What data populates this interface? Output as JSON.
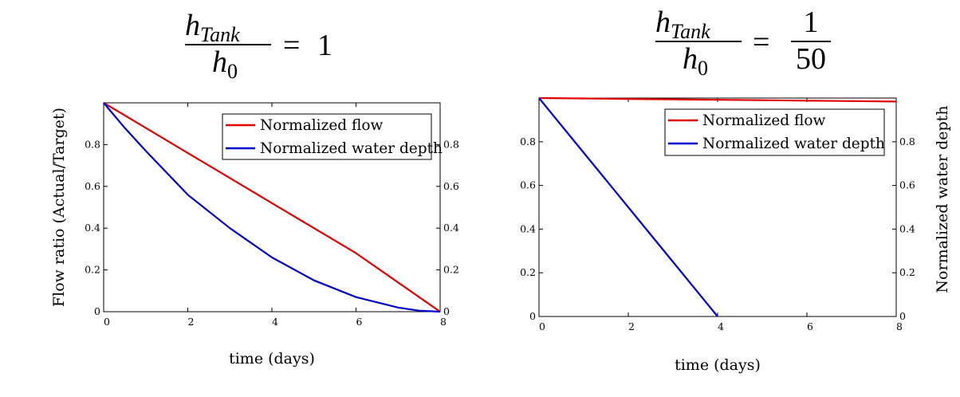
{
  "charts": [
    {
      "formula": {
        "numerator": "h",
        "numerator_sub": "Tank",
        "denominator": "h",
        "denominator_sub": "0",
        "equals": "=",
        "value": "1"
      },
      "chart_data": {
        "type": "line",
        "xlabel": "time (days)",
        "ylabel": "Flow ratio (Actual/Target)",
        "ylabel_right": "",
        "xlim": [
          0,
          8
        ],
        "ylim": [
          0,
          1
        ],
        "x_ticks": [
          "0",
          "2",
          "4",
          "6",
          "8"
        ],
        "y_ticks": [
          "0",
          "0.2",
          "0.4",
          "0.6",
          "0.8"
        ],
        "y_ticks_right": [
          "0",
          "0.2",
          "0.4",
          "0.6",
          "0.8"
        ],
        "legend_position": "top-right",
        "series": [
          {
            "name": "Normalized flow",
            "color": "#e00000",
            "x": [
              0,
              0.5,
              1,
              2,
              3,
              4,
              5,
              6,
              7,
              8
            ],
            "y": [
              1.0,
              0.94,
              0.88,
              0.76,
              0.64,
              0.52,
              0.4,
              0.28,
              0.14,
              0.0
            ]
          },
          {
            "name": "Normalized water depth",
            "color": "#0000cc",
            "x": [
              0,
              0.5,
              1,
              2,
              3,
              4,
              5,
              6,
              7,
              7.5,
              8
            ],
            "y": [
              1.0,
              0.88,
              0.77,
              0.56,
              0.4,
              0.26,
              0.15,
              0.07,
              0.02,
              0.005,
              0.0
            ]
          }
        ]
      }
    },
    {
      "formula": {
        "numerator": "h",
        "numerator_sub": "Tank",
        "denominator": "h",
        "denominator_sub": "0",
        "equals": "=",
        "frac_num": "1",
        "frac_den": "50"
      },
      "chart_data": {
        "type": "line",
        "xlabel": "time (days)",
        "ylabel": "",
        "ylabel_right": "Normalized water depth",
        "xlim": [
          0,
          8
        ],
        "ylim": [
          0,
          1
        ],
        "x_ticks": [
          "0",
          "2",
          "4",
          "6",
          "8"
        ],
        "y_ticks": [
          "0",
          "0.2",
          "0.4",
          "0.6",
          "0.8"
        ],
        "y_ticks_right": [
          "0",
          "0.2",
          "0.4",
          "0.6",
          "0.8"
        ],
        "legend_position": "top-right",
        "series": [
          {
            "name": "Normalized flow",
            "color": "#e00000",
            "x": [
              0,
              1,
              2,
              3,
              4,
              5,
              6,
              7,
              8
            ],
            "y": [
              1.0,
              0.998,
              0.996,
              0.994,
              0.992,
              0.99,
              0.988,
              0.986,
              0.984
            ]
          },
          {
            "name": "Normalized water depth",
            "color": "#0000cc",
            "x": [
              0,
              1,
              2,
              3,
              4
            ],
            "y": [
              1.0,
              0.75,
              0.5,
              0.25,
              0.0
            ]
          }
        ]
      }
    }
  ]
}
